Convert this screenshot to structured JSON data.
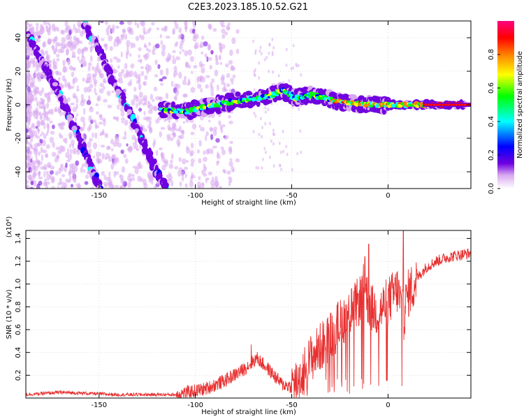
{
  "title": "C2E3.2023.185.10.52.G21",
  "chart_data": [
    {
      "type": "heatmap",
      "title": "C2E3.2023.185.10.52.G21",
      "xlabel": "Height of straight line (km)",
      "ylabel": "Frequency (Hz)",
      "xlim": [
        -188,
        43
      ],
      "ylim": [
        -50,
        50
      ],
      "x_ticks": [
        -150,
        -100,
        -50,
        0
      ],
      "y_ticks": [
        -40,
        -20,
        0,
        20,
        40
      ],
      "colorbar": {
        "label": "Normalized spectral amplitude",
        "range": [
          0.0,
          1.0
        ],
        "ticks": [
          0.0,
          0.2,
          0.4,
          0.6,
          0.8
        ],
        "colormap": [
          "#ffffff",
          "#d8a8f0",
          "#7000e0",
          "#0000ff",
          "#00ffff",
          "#00ff00",
          "#ffff00",
          "#ff8000",
          "#ff0000",
          "#ff0080"
        ]
      },
      "ridges": [
        {
          "name_hint": "diagonal",
          "points": [
            [
              -187,
              43
            ],
            [
              -178,
              22
            ],
            [
              -170,
              5
            ],
            [
              -162,
              -15
            ],
            [
              -155,
              -35
            ],
            [
              -150,
              -50
            ]
          ]
        },
        {
          "name_hint": "diagonal-2",
          "points": [
            [
              -158,
              50
            ],
            [
              -150,
              33
            ],
            [
              -143,
              15
            ],
            [
              -135,
              -2
            ],
            [
              -128,
              -20
            ],
            [
              -120,
              -40
            ],
            [
              -115,
              -50
            ]
          ]
        },
        {
          "name_hint": "main-band",
          "points": [
            [
              -118,
              -3
            ],
            [
              -105,
              -4
            ],
            [
              -90,
              0
            ],
            [
              -75,
              3
            ],
            [
              -62,
              5
            ],
            [
              -55,
              9
            ],
            [
              -48,
              4
            ],
            [
              -40,
              6
            ],
            [
              -30,
              3
            ],
            [
              -20,
              1
            ],
            [
              -10,
              0
            ],
            [
              0,
              0
            ],
            [
              10,
              0
            ],
            [
              20,
              0
            ],
            [
              40,
              0
            ]
          ]
        }
      ],
      "grid": true
    },
    {
      "type": "line",
      "xlabel": "Height of straight line (km)",
      "ylabel": "SNR (10 * v/v)",
      "y_multiplier": "(x10⁴)",
      "xlim": [
        -188,
        43
      ],
      "ylim": [
        0,
        1.47
      ],
      "x_ticks": [
        -150,
        -100,
        -50,
        0
      ],
      "y_ticks": [
        0.2,
        0.4,
        0.6,
        0.8,
        1.0,
        1.2,
        1.4
      ],
      "color": "#e83030",
      "grid": true,
      "envelope": {
        "x": [
          -188,
          -170,
          -140,
          -110,
          -95,
          -85,
          -75,
          -68,
          -62,
          -55,
          -50,
          -45,
          -40,
          -35,
          -30,
          -25,
          -20,
          -15,
          -12,
          -10,
          -5,
          0,
          5,
          8,
          10,
          15,
          20,
          25,
          30,
          35,
          43
        ],
        "y": [
          0.03,
          0.05,
          0.03,
          0.03,
          0.08,
          0.15,
          0.25,
          0.35,
          0.25,
          0.12,
          0.1,
          0.2,
          0.35,
          0.45,
          0.55,
          0.65,
          0.75,
          0.85,
          1.0,
          0.8,
          0.75,
          0.85,
          0.95,
          0.7,
          0.9,
          1.05,
          1.15,
          1.2,
          1.23,
          1.25,
          1.27
        ]
      },
      "peaks": [
        [
          -71,
          0.47
        ],
        [
          -33,
          0.55
        ],
        [
          -26,
          0.84
        ],
        [
          -19,
          0.96
        ],
        [
          -12,
          1.24
        ],
        [
          -10,
          1.35
        ],
        [
          8,
          1.47
        ]
      ]
    }
  ]
}
